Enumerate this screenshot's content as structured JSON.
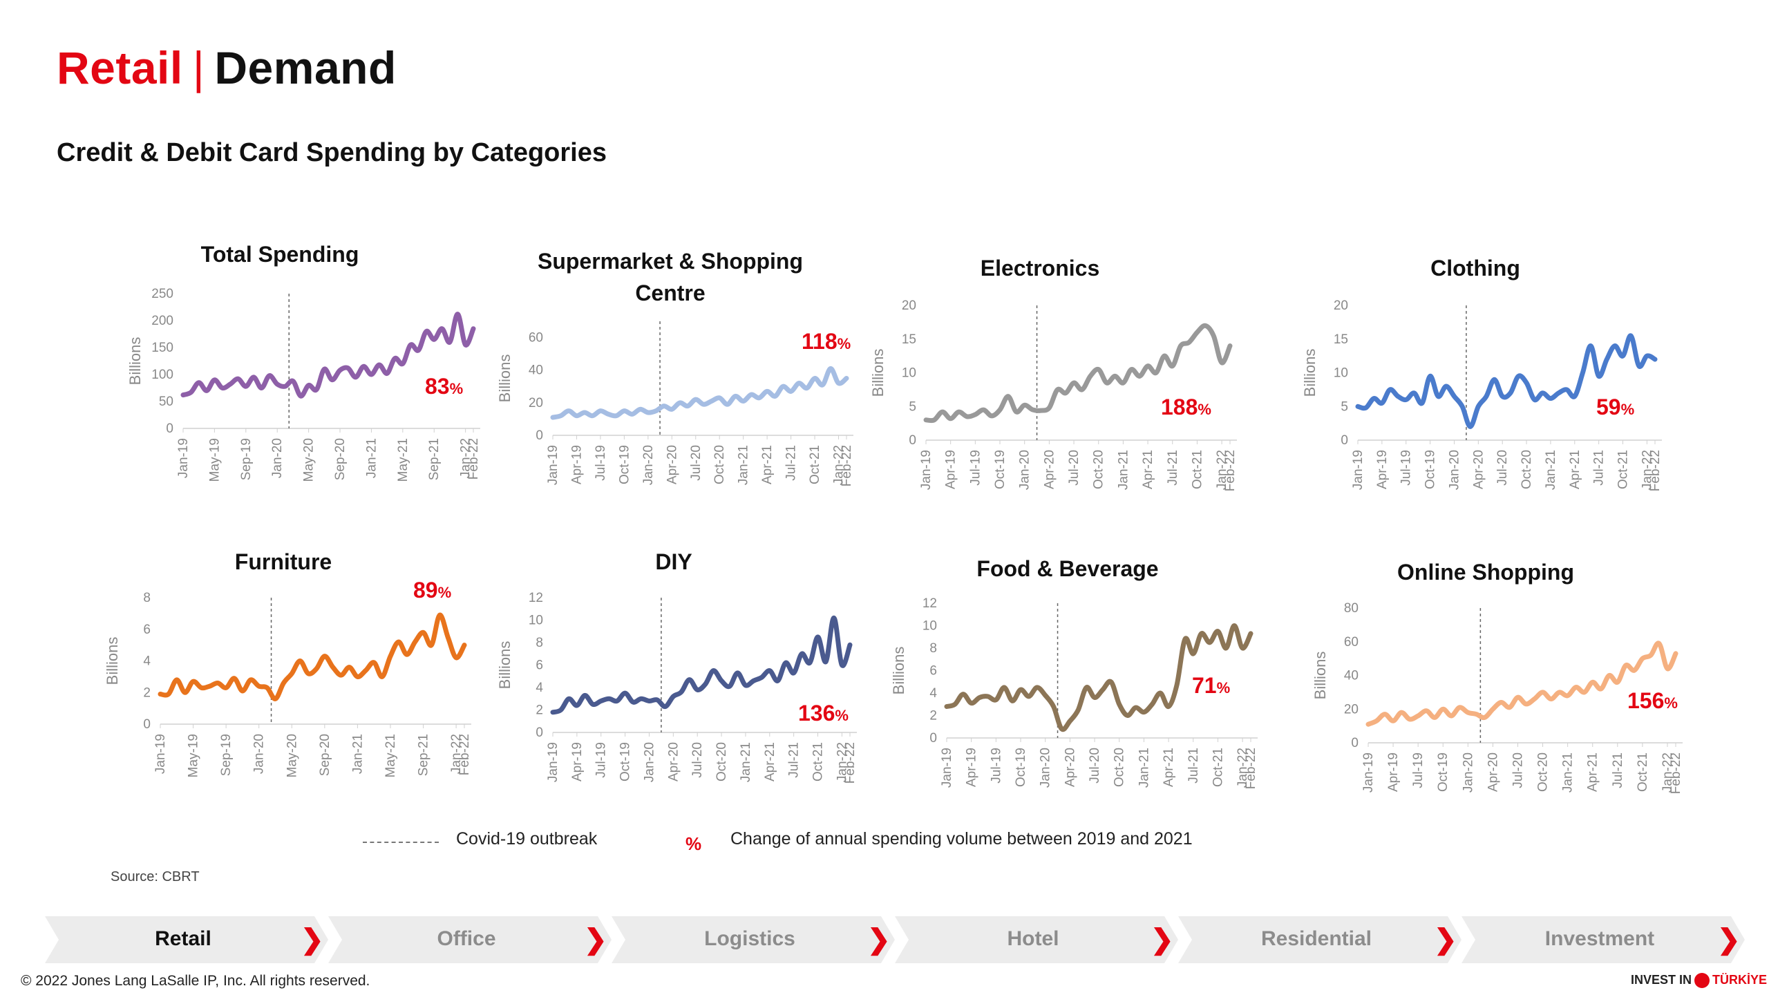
{
  "header": {
    "title_red": "Retail",
    "title_sep": "|",
    "title_black": "Demand",
    "subtitle": "Credit & Debit Card Spending by Categories"
  },
  "chart_data": [
    {
      "type": "line",
      "title": "Total Spending",
      "ylabel": "Billions",
      "ylim": [
        0,
        250
      ],
      "yticks": [
        0,
        50,
        100,
        150,
        200,
        250
      ],
      "xticks": [
        "Jan-19",
        "May-19",
        "Sep-19",
        "Jan-20",
        "May-20",
        "Sep-20",
        "Jan-21",
        "May-21",
        "Sep-21",
        "Jan-22",
        "Feb-22"
      ],
      "x": [
        "Jan-19",
        "Feb-19",
        "Mar-19",
        "Apr-19",
        "May-19",
        "Jun-19",
        "Jul-19",
        "Aug-19",
        "Sep-19",
        "Oct-19",
        "Nov-19",
        "Dec-19",
        "Jan-20",
        "Feb-20",
        "Mar-20",
        "Apr-20",
        "May-20",
        "Jun-20",
        "Jul-20",
        "Aug-20",
        "Sep-20",
        "Oct-20",
        "Nov-20",
        "Dec-20",
        "Jan-21",
        "Feb-21",
        "Mar-21",
        "Apr-21",
        "May-21",
        "Jun-21",
        "Jul-21",
        "Aug-21",
        "Sep-21",
        "Oct-21",
        "Nov-21",
        "Dec-21",
        "Jan-22",
        "Feb-22"
      ],
      "values": [
        62,
        67,
        85,
        70,
        90,
        75,
        82,
        92,
        78,
        95,
        75,
        98,
        82,
        78,
        88,
        60,
        80,
        72,
        110,
        90,
        108,
        112,
        95,
        115,
        100,
        118,
        102,
        130,
        120,
        155,
        145,
        180,
        165,
        185,
        160,
        212,
        155,
        185
      ],
      "color": "#8e5fa8",
      "pct": "83",
      "covid_index": 13.5
    },
    {
      "type": "line",
      "title": "Supermarket & Shopping Centre",
      "ylabel": "Billions",
      "ylim": [
        0,
        70
      ],
      "yticks": [
        0,
        20,
        40,
        60
      ],
      "xticks": [
        "Jan-19",
        "Apr-19",
        "Jul-19",
        "Oct-19",
        "Jan-20",
        "Apr-20",
        "Jul-20",
        "Oct-20",
        "Jan-21",
        "Apr-21",
        "Jul-21",
        "Oct-21",
        "Jan-22",
        "Feb-22"
      ],
      "x": [
        "Jan-19",
        "Feb-19",
        "Mar-19",
        "Apr-19",
        "May-19",
        "Jun-19",
        "Jul-19",
        "Aug-19",
        "Sep-19",
        "Oct-19",
        "Nov-19",
        "Dec-19",
        "Jan-20",
        "Feb-20",
        "Mar-20",
        "Apr-20",
        "May-20",
        "Jun-20",
        "Jul-20",
        "Aug-20",
        "Sep-20",
        "Oct-20",
        "Nov-20",
        "Dec-20",
        "Jan-21",
        "Feb-21",
        "Mar-21",
        "Apr-21",
        "May-21",
        "Jun-21",
        "Jul-21",
        "Aug-21",
        "Sep-21",
        "Oct-21",
        "Nov-21",
        "Dec-21",
        "Jan-22",
        "Feb-22"
      ],
      "values": [
        11,
        12,
        15,
        12,
        14,
        12,
        15,
        13,
        12,
        15,
        13,
        16,
        14,
        15,
        18,
        16,
        20,
        18,
        22,
        19,
        21,
        23,
        19,
        24,
        21,
        25,
        23,
        27,
        24,
        30,
        27,
        32,
        29,
        35,
        31,
        41,
        32,
        35
      ],
      "color": "#a5bde3",
      "pct": "118",
      "covid_index": 13.5
    },
    {
      "type": "line",
      "title": "Electronics",
      "ylabel": "Billions",
      "ylim": [
        0,
        20
      ],
      "yticks": [
        0,
        5,
        10,
        15,
        20
      ],
      "xticks": [
        "Jan-19",
        "Apr-19",
        "Jul-19",
        "Oct-19",
        "Jan-20",
        "Apr-20",
        "Jul-20",
        "Oct-20",
        "Jan-21",
        "Apr-21",
        "Jul-21",
        "Oct-21",
        "Jan-22",
        "Feb-22"
      ],
      "x": [
        "Jan-19",
        "Feb-19",
        "Mar-19",
        "Apr-19",
        "May-19",
        "Jun-19",
        "Jul-19",
        "Aug-19",
        "Sep-19",
        "Oct-19",
        "Nov-19",
        "Dec-19",
        "Jan-20",
        "Feb-20",
        "Mar-20",
        "Apr-20",
        "May-20",
        "Jun-20",
        "Jul-20",
        "Aug-20",
        "Sep-20",
        "Oct-20",
        "Nov-20",
        "Dec-20",
        "Jan-21",
        "Feb-21",
        "Mar-21",
        "Apr-21",
        "May-21",
        "Jun-21",
        "Jul-21",
        "Aug-21",
        "Sep-21",
        "Oct-21",
        "Nov-21",
        "Dec-21",
        "Jan-22",
        "Feb-22"
      ],
      "values": [
        3,
        3,
        4.2,
        3.2,
        4.2,
        3.5,
        3.8,
        4.5,
        3.6,
        4.5,
        6.5,
        4.2,
        5.2,
        4.5,
        4.4,
        4.8,
        7.5,
        7,
        8.5,
        7.5,
        9.5,
        10.5,
        8.5,
        9.5,
        8.5,
        10.5,
        9.5,
        11,
        10,
        12.5,
        11,
        14,
        14.5,
        16,
        17,
        15.5,
        11.5,
        14
      ],
      "color": "#999999",
      "pct": "188",
      "covid_index": 13.5
    },
    {
      "type": "line",
      "title": "Clothing",
      "ylabel": "Billions",
      "ylim": [
        0,
        20
      ],
      "yticks": [
        0,
        5,
        10,
        15,
        20
      ],
      "xticks": [
        "Jan-19",
        "Apr-19",
        "Jul-19",
        "Oct-19",
        "Jan-20",
        "Apr-20",
        "Jul-20",
        "Oct-20",
        "Jan-21",
        "Apr-21",
        "Jul-21",
        "Oct-21",
        "Jan-22",
        "Feb-22"
      ],
      "x": [
        "Jan-19",
        "Feb-19",
        "Mar-19",
        "Apr-19",
        "May-19",
        "Jun-19",
        "Jul-19",
        "Aug-19",
        "Sep-19",
        "Oct-19",
        "Nov-19",
        "Dec-19",
        "Jan-20",
        "Feb-20",
        "Mar-20",
        "Apr-20",
        "May-20",
        "Jun-20",
        "Jul-20",
        "Aug-20",
        "Sep-20",
        "Oct-20",
        "Nov-20",
        "Dec-20",
        "Jan-21",
        "Feb-21",
        "Mar-21",
        "Apr-21",
        "May-21",
        "Jun-21",
        "Jul-21",
        "Aug-21",
        "Sep-21",
        "Oct-21",
        "Nov-21",
        "Dec-21",
        "Jan-22",
        "Feb-22"
      ],
      "values": [
        5,
        4.8,
        6.2,
        5.5,
        7.5,
        6.5,
        6,
        7,
        5.5,
        9.5,
        6.5,
        8,
        6.5,
        5,
        2,
        5,
        6.5,
        9,
        6.5,
        7,
        9.5,
        8.5,
        6,
        7,
        6.2,
        7,
        7.5,
        6.5,
        10,
        14,
        9.5,
        12,
        14,
        12.5,
        15.5,
        11,
        12.5,
        12
      ],
      "color": "#4a7bcc",
      "pct": "59",
      "covid_index": 13.5
    },
    {
      "type": "line",
      "title": "Furniture",
      "ylabel": "Billions",
      "ylim": [
        0,
        8
      ],
      "yticks": [
        0,
        2,
        4,
        6,
        8
      ],
      "xticks": [
        "Jan-19",
        "May-19",
        "Sep-19",
        "Jan-20",
        "May-20",
        "Sep-20",
        "Jan-21",
        "May-21",
        "Sep-21",
        "Jan-22",
        "Feb-22"
      ],
      "x": [
        "Jan-19",
        "Feb-19",
        "Mar-19",
        "Apr-19",
        "May-19",
        "Jun-19",
        "Jul-19",
        "Aug-19",
        "Sep-19",
        "Oct-19",
        "Nov-19",
        "Dec-19",
        "Jan-20",
        "Feb-20",
        "Mar-20",
        "Apr-20",
        "May-20",
        "Jun-20",
        "Jul-20",
        "Aug-20",
        "Sep-20",
        "Oct-20",
        "Nov-20",
        "Dec-20",
        "Jan-21",
        "Feb-21",
        "Mar-21",
        "Apr-21",
        "May-21",
        "Jun-21",
        "Jul-21",
        "Aug-21",
        "Sep-21",
        "Oct-21",
        "Nov-21",
        "Dec-21",
        "Jan-22",
        "Feb-22"
      ],
      "values": [
        1.9,
        1.9,
        2.8,
        2.0,
        2.7,
        2.3,
        2.4,
        2.6,
        2.3,
        2.9,
        2.1,
        2.8,
        2.4,
        2.3,
        1.6,
        2.6,
        3.2,
        4.0,
        3.2,
        3.5,
        4.3,
        3.6,
        3.1,
        3.6,
        3.0,
        3.4,
        3.9,
        3.0,
        4.3,
        5.2,
        4.4,
        5.2,
        5.8,
        5.0,
        6.9,
        5.5,
        4.2,
        5.0
      ],
      "color": "#e8731c",
      "pct": "89",
      "covid_index": 13.5
    },
    {
      "type": "line",
      "title": "DIY",
      "ylabel": "Billions",
      "ylim": [
        0,
        12
      ],
      "yticks": [
        0,
        2,
        4,
        6,
        8,
        10,
        12
      ],
      "xticks": [
        "Jan-19",
        "Apr-19",
        "Jul-19",
        "Oct-19",
        "Jan-20",
        "Apr-20",
        "Jul-20",
        "Oct-20",
        "Jan-21",
        "Apr-21",
        "Jul-21",
        "Oct-21",
        "Jan-22",
        "Feb-22"
      ],
      "x": [
        "Jan-19",
        "Feb-19",
        "Mar-19",
        "Apr-19",
        "May-19",
        "Jun-19",
        "Jul-19",
        "Aug-19",
        "Sep-19",
        "Oct-19",
        "Nov-19",
        "Dec-19",
        "Jan-20",
        "Feb-20",
        "Mar-20",
        "Apr-20",
        "May-20",
        "Jun-20",
        "Jul-20",
        "Aug-20",
        "Sep-20",
        "Oct-20",
        "Nov-20",
        "Dec-20",
        "Jan-21",
        "Feb-21",
        "Mar-21",
        "Apr-21",
        "May-21",
        "Jun-21",
        "Jul-21",
        "Aug-21",
        "Sep-21",
        "Oct-21",
        "Nov-21",
        "Dec-21",
        "Jan-22",
        "Feb-22"
      ],
      "values": [
        1.8,
        2.0,
        3.0,
        2.4,
        3.3,
        2.5,
        2.8,
        3.0,
        2.8,
        3.5,
        2.7,
        3.0,
        2.8,
        2.9,
        2.3,
        3.2,
        3.6,
        4.7,
        3.8,
        4.3,
        5.5,
        4.6,
        4.1,
        5.3,
        4.2,
        4.6,
        4.9,
        5.5,
        4.6,
        6.2,
        5.3,
        7.0,
        6.2,
        8.5,
        6.3,
        10.2,
        6.0,
        7.8
      ],
      "color": "#4a5a8f",
      "pct": "136",
      "covid_index": 13.5
    },
    {
      "type": "line",
      "title": "Food & Beverage",
      "ylabel": "Billions",
      "ylim": [
        0,
        12
      ],
      "yticks": [
        0,
        2,
        4,
        6,
        8,
        10,
        12
      ],
      "xticks": [
        "Jan-19",
        "Apr-19",
        "Jul-19",
        "Oct-19",
        "Jan-20",
        "Apr-20",
        "Jul-20",
        "Oct-20",
        "Jan-21",
        "Apr-21",
        "Jul-21",
        "Oct-21",
        "Jan-22",
        "Feb-22"
      ],
      "x": [
        "Jan-19",
        "Feb-19",
        "Mar-19",
        "Apr-19",
        "May-19",
        "Jun-19",
        "Jul-19",
        "Aug-19",
        "Sep-19",
        "Oct-19",
        "Nov-19",
        "Dec-19",
        "Jan-20",
        "Feb-20",
        "Mar-20",
        "Apr-20",
        "May-20",
        "Jun-20",
        "Jul-20",
        "Aug-20",
        "Sep-20",
        "Oct-20",
        "Nov-20",
        "Dec-20",
        "Jan-21",
        "Feb-21",
        "Mar-21",
        "Apr-21",
        "May-21",
        "Jun-21",
        "Jul-21",
        "Aug-21",
        "Sep-21",
        "Oct-21",
        "Nov-21",
        "Dec-21",
        "Jan-22",
        "Feb-22"
      ],
      "values": [
        2.8,
        3.0,
        3.9,
        3.1,
        3.6,
        3.7,
        3.4,
        4.5,
        3.3,
        4.3,
        3.7,
        4.5,
        3.8,
        2.8,
        0.8,
        1.5,
        2.5,
        4.5,
        3.6,
        4.3,
        5.0,
        3.0,
        2.0,
        2.7,
        2.3,
        3.0,
        4.0,
        2.8,
        4.7,
        8.8,
        7.5,
        9.3,
        8.5,
        9.5,
        8.0,
        10.0,
        8.0,
        9.3
      ],
      "color": "#8c7556",
      "pct": "71",
      "covid_index": 13.5
    },
    {
      "type": "line",
      "title": "Online Shopping",
      "ylabel": "Billions",
      "ylim": [
        0,
        80
      ],
      "yticks": [
        0,
        20,
        40,
        60,
        80
      ],
      "xticks": [
        "Jan-19",
        "Apr-19",
        "Jul-19",
        "Oct-19",
        "Jan-20",
        "Apr-20",
        "Jul-20",
        "Oct-20",
        "Jan-21",
        "Apr-21",
        "Jul-21",
        "Oct-21",
        "Jan-22",
        "Feb-22"
      ],
      "x": [
        "Jan-19",
        "Feb-19",
        "Mar-19",
        "Apr-19",
        "May-19",
        "Jun-19",
        "Jul-19",
        "Aug-19",
        "Sep-19",
        "Oct-19",
        "Nov-19",
        "Dec-19",
        "Jan-20",
        "Feb-20",
        "Mar-20",
        "Apr-20",
        "May-20",
        "Jun-20",
        "Jul-20",
        "Aug-20",
        "Sep-20",
        "Oct-20",
        "Nov-20",
        "Dec-20",
        "Jan-21",
        "Feb-21",
        "Mar-21",
        "Apr-21",
        "May-21",
        "Jun-21",
        "Jul-21",
        "Aug-21",
        "Sep-21",
        "Oct-21",
        "Nov-21",
        "Dec-21",
        "Jan-22",
        "Feb-22"
      ],
      "values": [
        11,
        13,
        17,
        13,
        18,
        14,
        16,
        19,
        15,
        20,
        16,
        21,
        18,
        17,
        15,
        20,
        24,
        21,
        27,
        23,
        26,
        30,
        26,
        30,
        28,
        33,
        30,
        36,
        32,
        40,
        36,
        46,
        43,
        50,
        52,
        59,
        44,
        53
      ],
      "color": "#f5b080",
      "pct": "156",
      "covid_index": 13.5
    }
  ],
  "legend": {
    "covid": "Covid-19 outbreak",
    "pct_symbol": "%",
    "pct_text": "Change of annual spending  volume between 2019 and 2021"
  },
  "source": "Source: CBRT",
  "nav": [
    {
      "label": "Retail",
      "active": true
    },
    {
      "label": "Office",
      "active": false
    },
    {
      "label": "Logistics",
      "active": false
    },
    {
      "label": "Hotel",
      "active": false
    },
    {
      "label": "Residential",
      "active": false
    },
    {
      "label": "Investment",
      "active": false
    }
  ],
  "nav_chevron": "❯",
  "footer": "© 2022 Jones Lang LaSalle IP, Inc. All rights reserved.",
  "brand": {
    "left": "INVEST IN",
    "right": "TÜRKİYE"
  },
  "colors": {
    "accent": "#e30613",
    "nav_bg": "#ececec"
  }
}
